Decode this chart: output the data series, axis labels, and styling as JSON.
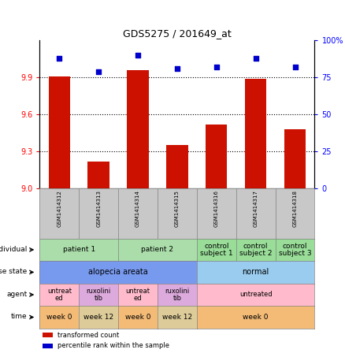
{
  "title": "GDS5275 / 201649_at",
  "samples": [
    "GSM1414312",
    "GSM1414313",
    "GSM1414314",
    "GSM1414315",
    "GSM1414316",
    "GSM1414317",
    "GSM1414318"
  ],
  "bar_values": [
    9.91,
    9.22,
    9.96,
    9.35,
    9.52,
    9.89,
    9.48
  ],
  "dot_values": [
    88,
    79,
    90,
    81,
    82,
    88,
    82
  ],
  "ylim_left": [
    9.0,
    10.2
  ],
  "ylim_right": [
    0,
    100
  ],
  "yticks_left": [
    9.0,
    9.3,
    9.6,
    9.9
  ],
  "yticks_right": [
    0,
    25,
    50,
    75,
    100
  ],
  "bar_color": "#CC1100",
  "dot_color": "#0000CC",
  "row_labels": [
    "individual",
    "disease state",
    "agent",
    "time"
  ],
  "individual_groups": [
    {
      "label": "patient 1",
      "cols": [
        0,
        1
      ],
      "color": "#AADDAA"
    },
    {
      "label": "patient 2",
      "cols": [
        2,
        3
      ],
      "color": "#AADDAA"
    },
    {
      "label": "control\nsubject 1",
      "cols": [
        4
      ],
      "color": "#99DD99"
    },
    {
      "label": "control\nsubject 2",
      "cols": [
        5
      ],
      "color": "#99DD99"
    },
    {
      "label": "control\nsubject 3",
      "cols": [
        6
      ],
      "color": "#99DD99"
    }
  ],
  "disease_groups": [
    {
      "label": "alopecia areata",
      "cols": [
        0,
        1,
        2,
        3
      ],
      "color": "#7799EE"
    },
    {
      "label": "normal",
      "cols": [
        4,
        5,
        6
      ],
      "color": "#99CCEE"
    }
  ],
  "agent_groups": [
    {
      "label": "untreat\ned",
      "cols": [
        0
      ],
      "color": "#FFBBCC"
    },
    {
      "label": "ruxolini\ntib",
      "cols": [
        1
      ],
      "color": "#DDAADD"
    },
    {
      "label": "untreat\ned",
      "cols": [
        2
      ],
      "color": "#FFBBCC"
    },
    {
      "label": "ruxolini\ntib",
      "cols": [
        3
      ],
      "color": "#DDAADD"
    },
    {
      "label": "untreated",
      "cols": [
        4,
        5,
        6
      ],
      "color": "#FFBBCC"
    }
  ],
  "time_groups": [
    {
      "label": "week 0",
      "cols": [
        0
      ],
      "color": "#F4BB77"
    },
    {
      "label": "week 12",
      "cols": [
        1
      ],
      "color": "#DDCC99"
    },
    {
      "label": "week 0",
      "cols": [
        2
      ],
      "color": "#F4BB77"
    },
    {
      "label": "week 12",
      "cols": [
        3
      ],
      "color": "#DDCC99"
    },
    {
      "label": "week 0",
      "cols": [
        4,
        5,
        6
      ],
      "color": "#F4BB77"
    }
  ],
  "legend_items": [
    {
      "label": "transformed count",
      "color": "#CC1100"
    },
    {
      "label": "percentile rank within the sample",
      "color": "#0000CC"
    }
  ],
  "sample_box_color": "#C8C8C8"
}
